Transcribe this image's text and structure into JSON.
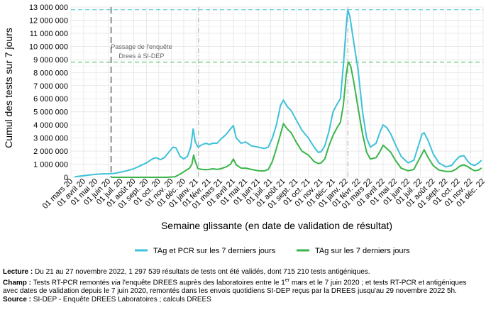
{
  "chart_data": {
    "type": "line",
    "ylabel": "Cumul des tests sur 7 jours",
    "xlabel": "Semaine glissante (en date de validation de résultat)",
    "ylim": [
      0,
      13000000
    ],
    "yticks": [
      0,
      1000000,
      2000000,
      3000000,
      4000000,
      5000000,
      6000000,
      7000000,
      8000000,
      9000000,
      10000000,
      11000000,
      12000000,
      13000000
    ],
    "ytick_labels": [
      "0",
      "1 000 000",
      "2 000 000",
      "3 000 000",
      "4 000 000",
      "5 000 000",
      "6 000 000",
      "7 000 000",
      "8 000 000",
      "9 000 000",
      "10 000 000",
      "11 000 000",
      "12 000 000",
      "13 000 000"
    ],
    "xlim": [
      "2020-03-01",
      "2022-12-01"
    ],
    "xticks": [
      "2020-03-01",
      "2020-04-01",
      "2020-05-01",
      "2020-06-01",
      "2020-07-01",
      "2020-08-01",
      "2020-09-01",
      "2020-10-01",
      "2020-11-01",
      "2020-12-01",
      "2021-01-01",
      "2021-02-01",
      "2021-03-01",
      "2021-04-01",
      "2021-05-01",
      "2021-06-01",
      "2021-07-01",
      "2021-08-01",
      "2021-09-01",
      "2021-10-01",
      "2021-11-01",
      "2021-12-01",
      "2022-01-01",
      "2022-02-01",
      "2022-03-01",
      "2022-04-01",
      "2022-05-01",
      "2022-06-01",
      "2022-07-01",
      "2022-08-01",
      "2022-09-01",
      "2022-10-01",
      "2022-11-01",
      "2022-12-01"
    ],
    "xtick_labels": [
      "01 mars 20",
      "01 avril 20",
      "01 mai 20",
      "01 juin 20",
      "01 juil. 20",
      "01 août 20",
      "01 sept. 20",
      "01 oct. 20",
      "01 nov. 20",
      "01 déc. 20",
      "01 janv. 21",
      "01 févr. 21",
      "01 mars 21",
      "01 avril 21",
      "01 mai 21",
      "01 juin 21",
      "01 juil. 21",
      "01 août 21",
      "01 sept. 21",
      "01 oct. 21",
      "01 nov. 21",
      "01 déc. 21",
      "01 janv. 22",
      "01 févr. 22",
      "01 mars 22",
      "01 avril 22",
      "01 mai 22",
      "01 juin 22",
      "01 juil. 22",
      "01 août 22",
      "01 sept. 22",
      "01 oct. 22",
      "01 nov. 22",
      "01 déc. 22"
    ],
    "grid": true,
    "legend_position": "bottom",
    "series": [
      {
        "name": "TAg et PCR sur les 7 derniers jours",
        "color": "#3ec1d9",
        "points": [
          [
            "2020-03-10",
            40000
          ],
          [
            "2020-03-25",
            100000
          ],
          [
            "2020-04-15",
            180000
          ],
          [
            "2020-05-01",
            230000
          ],
          [
            "2020-05-15",
            260000
          ],
          [
            "2020-06-01",
            270000
          ],
          [
            "2020-06-15",
            300000
          ],
          [
            "2020-07-01",
            400000
          ],
          [
            "2020-07-15",
            500000
          ],
          [
            "2020-08-01",
            650000
          ],
          [
            "2020-08-15",
            850000
          ],
          [
            "2020-09-01",
            1100000
          ],
          [
            "2020-09-15",
            1400000
          ],
          [
            "2020-09-25",
            1500000
          ],
          [
            "2020-10-05",
            1350000
          ],
          [
            "2020-10-15",
            1500000
          ],
          [
            "2020-10-25",
            1900000
          ],
          [
            "2020-11-05",
            2300000
          ],
          [
            "2020-11-12",
            2250000
          ],
          [
            "2020-11-22",
            1600000
          ],
          [
            "2020-12-01",
            1400000
          ],
          [
            "2020-12-10",
            1600000
          ],
          [
            "2020-12-18",
            2300000
          ],
          [
            "2020-12-24",
            3700000
          ],
          [
            "2020-12-29",
            2700000
          ],
          [
            "2021-01-05",
            2300000
          ],
          [
            "2021-01-15",
            2500000
          ],
          [
            "2021-01-25",
            2600000
          ],
          [
            "2021-02-01",
            2500000
          ],
          [
            "2021-02-10",
            2600000
          ],
          [
            "2021-02-20",
            2600000
          ],
          [
            "2021-03-01",
            2900000
          ],
          [
            "2021-03-15",
            3300000
          ],
          [
            "2021-03-25",
            3700000
          ],
          [
            "2021-04-01",
            3950000
          ],
          [
            "2021-04-08",
            3000000
          ],
          [
            "2021-04-20",
            2600000
          ],
          [
            "2021-05-01",
            2700000
          ],
          [
            "2021-05-15",
            2400000
          ],
          [
            "2021-06-01",
            2300000
          ],
          [
            "2021-06-15",
            2200000
          ],
          [
            "2021-06-25",
            2300000
          ],
          [
            "2021-07-05",
            3000000
          ],
          [
            "2021-07-15",
            4000000
          ],
          [
            "2021-07-25",
            5500000
          ],
          [
            "2021-08-01",
            5900000
          ],
          [
            "2021-08-10",
            5400000
          ],
          [
            "2021-08-20",
            5100000
          ],
          [
            "2021-09-01",
            4400000
          ],
          [
            "2021-09-15",
            3600000
          ],
          [
            "2021-10-01",
            3000000
          ],
          [
            "2021-10-15",
            2300000
          ],
          [
            "2021-10-25",
            1900000
          ],
          [
            "2021-11-01",
            1950000
          ],
          [
            "2021-11-10",
            2400000
          ],
          [
            "2021-11-20",
            3500000
          ],
          [
            "2021-11-30",
            5000000
          ],
          [
            "2021-12-10",
            5600000
          ],
          [
            "2021-12-18",
            6000000
          ],
          [
            "2021-12-25",
            8500000
          ],
          [
            "2022-01-01",
            11500000
          ],
          [
            "2022-01-05",
            12800000
          ],
          [
            "2022-01-10",
            12300000
          ],
          [
            "2022-01-20",
            10200000
          ],
          [
            "2022-01-30",
            8200000
          ],
          [
            "2022-02-10",
            5000000
          ],
          [
            "2022-02-20",
            3000000
          ],
          [
            "2022-03-01",
            2300000
          ],
          [
            "2022-03-15",
            2600000
          ],
          [
            "2022-03-25",
            3500000
          ],
          [
            "2022-04-01",
            4000000
          ],
          [
            "2022-04-10",
            3800000
          ],
          [
            "2022-04-20",
            3300000
          ],
          [
            "2022-05-01",
            2500000
          ],
          [
            "2022-05-15",
            1600000
          ],
          [
            "2022-06-01",
            1100000
          ],
          [
            "2022-06-15",
            1300000
          ],
          [
            "2022-06-25",
            2300000
          ],
          [
            "2022-07-05",
            3300000
          ],
          [
            "2022-07-10",
            3400000
          ],
          [
            "2022-07-20",
            2800000
          ],
          [
            "2022-08-01",
            1800000
          ],
          [
            "2022-08-15",
            1100000
          ],
          [
            "2022-09-01",
            800000
          ],
          [
            "2022-09-15",
            900000
          ],
          [
            "2022-09-25",
            1300000
          ],
          [
            "2022-10-05",
            1600000
          ],
          [
            "2022-10-15",
            1650000
          ],
          [
            "2022-10-25",
            1200000
          ],
          [
            "2022-11-01",
            1000000
          ],
          [
            "2022-11-10",
            900000
          ],
          [
            "2022-11-20",
            1100000
          ],
          [
            "2022-11-27",
            1297539
          ]
        ]
      },
      {
        "name": "TAg sur les 7 derniers jours",
        "color": "#3ab54a",
        "points": [
          [
            "2020-06-07",
            0
          ],
          [
            "2020-07-15",
            0
          ],
          [
            "2020-09-01",
            0
          ],
          [
            "2020-10-20",
            0
          ],
          [
            "2020-11-10",
            40000
          ],
          [
            "2020-11-25",
            300000
          ],
          [
            "2020-12-05",
            500000
          ],
          [
            "2020-12-15",
            700000
          ],
          [
            "2020-12-21",
            1000000
          ],
          [
            "2020-12-25",
            1700000
          ],
          [
            "2020-12-29",
            1200000
          ],
          [
            "2021-01-05",
            650000
          ],
          [
            "2021-01-15",
            600000
          ],
          [
            "2021-01-25",
            580000
          ],
          [
            "2021-02-01",
            600000
          ],
          [
            "2021-02-10",
            650000
          ],
          [
            "2021-02-20",
            600000
          ],
          [
            "2021-03-01",
            650000
          ],
          [
            "2021-03-15",
            800000
          ],
          [
            "2021-03-25",
            1000000
          ],
          [
            "2021-04-01",
            1400000
          ],
          [
            "2021-04-08",
            950000
          ],
          [
            "2021-04-20",
            700000
          ],
          [
            "2021-05-01",
            700000
          ],
          [
            "2021-05-15",
            600000
          ],
          [
            "2021-06-01",
            500000
          ],
          [
            "2021-06-15",
            480000
          ],
          [
            "2021-06-25",
            600000
          ],
          [
            "2021-07-05",
            1200000
          ],
          [
            "2021-07-15",
            2200000
          ],
          [
            "2021-07-25",
            3300000
          ],
          [
            "2021-08-01",
            4100000
          ],
          [
            "2021-08-10",
            3700000
          ],
          [
            "2021-08-20",
            3400000
          ],
          [
            "2021-09-01",
            2700000
          ],
          [
            "2021-09-15",
            2000000
          ],
          [
            "2021-10-01",
            1700000
          ],
          [
            "2021-10-15",
            1200000
          ],
          [
            "2021-10-25",
            1050000
          ],
          [
            "2021-11-01",
            1100000
          ],
          [
            "2021-11-10",
            1400000
          ],
          [
            "2021-11-20",
            2400000
          ],
          [
            "2021-11-30",
            3200000
          ],
          [
            "2021-12-10",
            3800000
          ],
          [
            "2021-12-18",
            4200000
          ],
          [
            "2021-12-25",
            5500000
          ],
          [
            "2022-01-01",
            7800000
          ],
          [
            "2022-01-06",
            8800000
          ],
          [
            "2022-01-12",
            8500000
          ],
          [
            "2022-01-20",
            7200000
          ],
          [
            "2022-01-30",
            5300000
          ],
          [
            "2022-02-10",
            3300000
          ],
          [
            "2022-02-20",
            1900000
          ],
          [
            "2022-03-01",
            1400000
          ],
          [
            "2022-03-15",
            1500000
          ],
          [
            "2022-03-25",
            2000000
          ],
          [
            "2022-04-01",
            2450000
          ],
          [
            "2022-04-10",
            2200000
          ],
          [
            "2022-04-20",
            1900000
          ],
          [
            "2022-05-01",
            1300000
          ],
          [
            "2022-05-15",
            700000
          ],
          [
            "2022-06-01",
            500000
          ],
          [
            "2022-06-15",
            600000
          ],
          [
            "2022-06-25",
            1200000
          ],
          [
            "2022-07-05",
            1800000
          ],
          [
            "2022-07-10",
            2100000
          ],
          [
            "2022-07-20",
            1500000
          ],
          [
            "2022-08-01",
            900000
          ],
          [
            "2022-08-15",
            550000
          ],
          [
            "2022-09-01",
            450000
          ],
          [
            "2022-09-15",
            450000
          ],
          [
            "2022-09-25",
            600000
          ],
          [
            "2022-10-05",
            850000
          ],
          [
            "2022-10-15",
            950000
          ],
          [
            "2022-10-25",
            800000
          ],
          [
            "2022-11-01",
            650000
          ],
          [
            "2022-11-10",
            500000
          ],
          [
            "2022-11-20",
            550000
          ],
          [
            "2022-11-27",
            715210
          ]
        ]
      }
    ],
    "hlines": [
      {
        "y": 12800000,
        "color": "#3ec1d9",
        "style": "dashed"
      },
      {
        "y": 8800000,
        "color": "#3ab54a",
        "style": "dashed"
      }
    ],
    "vlines": [
      {
        "x": "2020-06-07",
        "color": "#999999",
        "style": "dashed-thick"
      },
      {
        "x": "2021-01-06",
        "color": "#aaaaaa",
        "style": "dashdot"
      },
      {
        "x": "2022-01-05",
        "color": "#aaaaaa",
        "style": "dashdot"
      }
    ],
    "annotation": {
      "x": "2020-08-20",
      "y": 9800000,
      "line1": "Passage de l'enquête",
      "line2": "Drees à SI-DEP"
    }
  },
  "notes": {
    "lecture_label": "Lecture :",
    "lecture_text": "Du 21 au 27 novembre 2022, 1 297 539 résultats de tests ont été validés, dont 715 210 tests antigéniques.",
    "champ_label": "Champ :",
    "champ_text_1": "Tests RT-PCR remontés",
    "champ_via": "via",
    "champ_text_2": "l'enquête DREES auprès des laboratoires entre le 1",
    "champ_sup": "er",
    "champ_text_3": "mars et le 7 juin 2020 ; et tests RT-PCR et antigéniques avec dates de validation depuis le 7 juin 2020, remontés dans les envois quotidiens SI-DEP reçus par la DREES jusqu'au 29 novembre 2022 5h.",
    "source_label": "Source :",
    "source_text": "SI-DEP - Enquête DREES Laboratoires ; calculs DREES"
  }
}
